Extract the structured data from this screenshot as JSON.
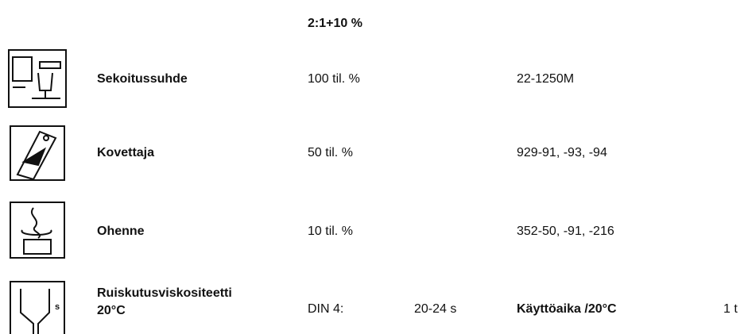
{
  "header": {
    "ratio": "2:1+10 %"
  },
  "rows": [
    {
      "label": "Sekoitussuhde",
      "value": "100 til. %",
      "code": "22-1250M"
    },
    {
      "label": "Kovettaja",
      "value": "50 til. %",
      "code": "929-91, -93, -94"
    },
    {
      "label": "Ohenne",
      "value": "10 til. %",
      "code": "352-50, -91, -216"
    }
  ],
  "viscosity": {
    "label_line1": "Ruiskutusviskositeetti",
    "label_line2": "20°C",
    "method": "DIN 4:",
    "value": "20-24 s",
    "pot_life_label": "Käyttöaika /20°C",
    "pot_life_value": "1 t"
  }
}
